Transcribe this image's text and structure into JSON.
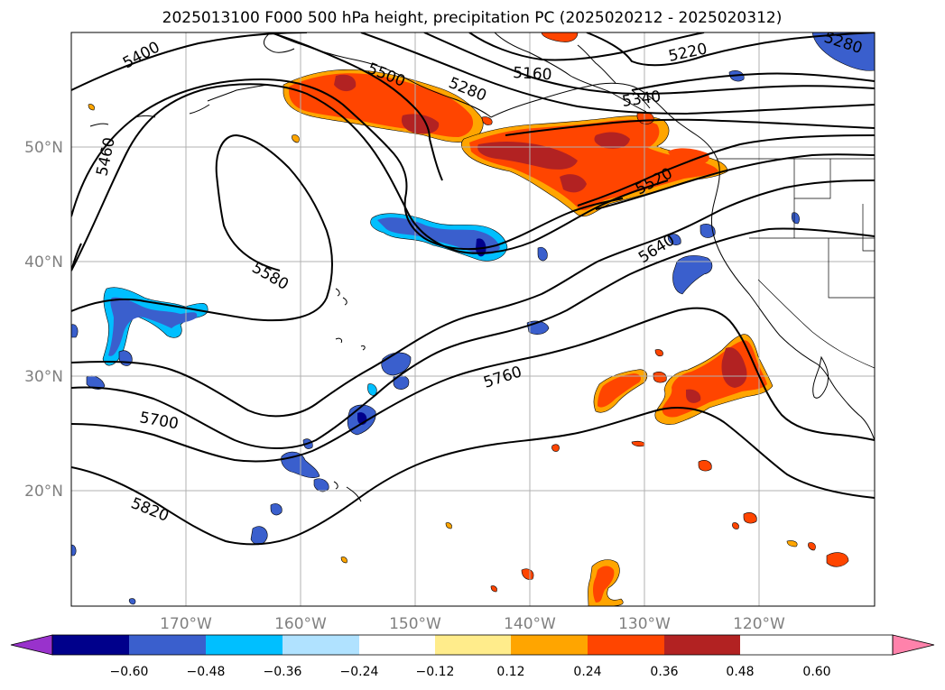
{
  "title": "2025013100 F000 500 hPa height, precipitation PC (2025020212 - 2025020312)",
  "map": {
    "lon_ticks": [
      "170°W",
      "160°W",
      "150°W",
      "140°W",
      "130°W",
      "120°W"
    ],
    "lat_ticks": [
      "50°N",
      "40°N",
      "30°N",
      "20°N"
    ]
  },
  "contour_labels": [
    "5400",
    "5460",
    "5500",
    "5280",
    "5160",
    "5220",
    "5280",
    "5340",
    "5520",
    "5640",
    "5580",
    "5760",
    "5700",
    "5820"
  ],
  "colorbar": {
    "ticks": [
      "−0.60",
      "−0.48",
      "−0.36",
      "−0.24",
      "−0.12",
      "0.12",
      "0.24",
      "0.36",
      "0.48",
      "0.60"
    ],
    "colors": [
      "#9932cc",
      "#00008b",
      "#3a5fcd",
      "#00bfff",
      "#b0e2ff",
      "#ffffff",
      "#ffec8b",
      "#ffa500",
      "#ff4500",
      "#b22222",
      "#ff82ab"
    ]
  },
  "colors": {
    "neg_strong": "#00008b",
    "neg_medium": "#3a5fcd",
    "neg_light": "#00bfff",
    "pos_light": "#ffec8b",
    "pos_medium": "#ffa500",
    "pos_strong": "#ff4500",
    "pos_max": "#b22222"
  }
}
